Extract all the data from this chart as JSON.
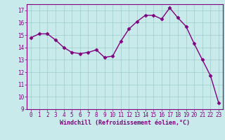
{
  "x": [
    0,
    1,
    2,
    3,
    4,
    5,
    6,
    7,
    8,
    9,
    10,
    11,
    12,
    13,
    14,
    15,
    16,
    17,
    18,
    19,
    20,
    21,
    22,
    23
  ],
  "y": [
    14.8,
    15.1,
    15.1,
    14.6,
    14.0,
    13.6,
    13.5,
    13.6,
    13.8,
    13.2,
    13.3,
    14.5,
    15.5,
    16.1,
    16.6,
    16.6,
    16.3,
    17.2,
    16.4,
    15.7,
    14.3,
    13.0,
    11.7,
    9.5
  ],
  "line_color": "#800080",
  "marker": "D",
  "marker_size": 2.5,
  "linewidth": 1.0,
  "bg_color": "#c8eaea",
  "grid_color": "#a0cccc",
  "xlabel": "Windchill (Refroidissement éolien,°C)",
  "ylim": [
    9,
    17.5
  ],
  "xlim": [
    -0.5,
    23.5
  ],
  "yticks": [
    9,
    10,
    11,
    12,
    13,
    14,
    15,
    16,
    17
  ],
  "xticks": [
    0,
    1,
    2,
    3,
    4,
    5,
    6,
    7,
    8,
    9,
    10,
    11,
    12,
    13,
    14,
    15,
    16,
    17,
    18,
    19,
    20,
    21,
    22,
    23
  ],
  "tick_fontsize": 5.5,
  "xlabel_fontsize": 6.0
}
